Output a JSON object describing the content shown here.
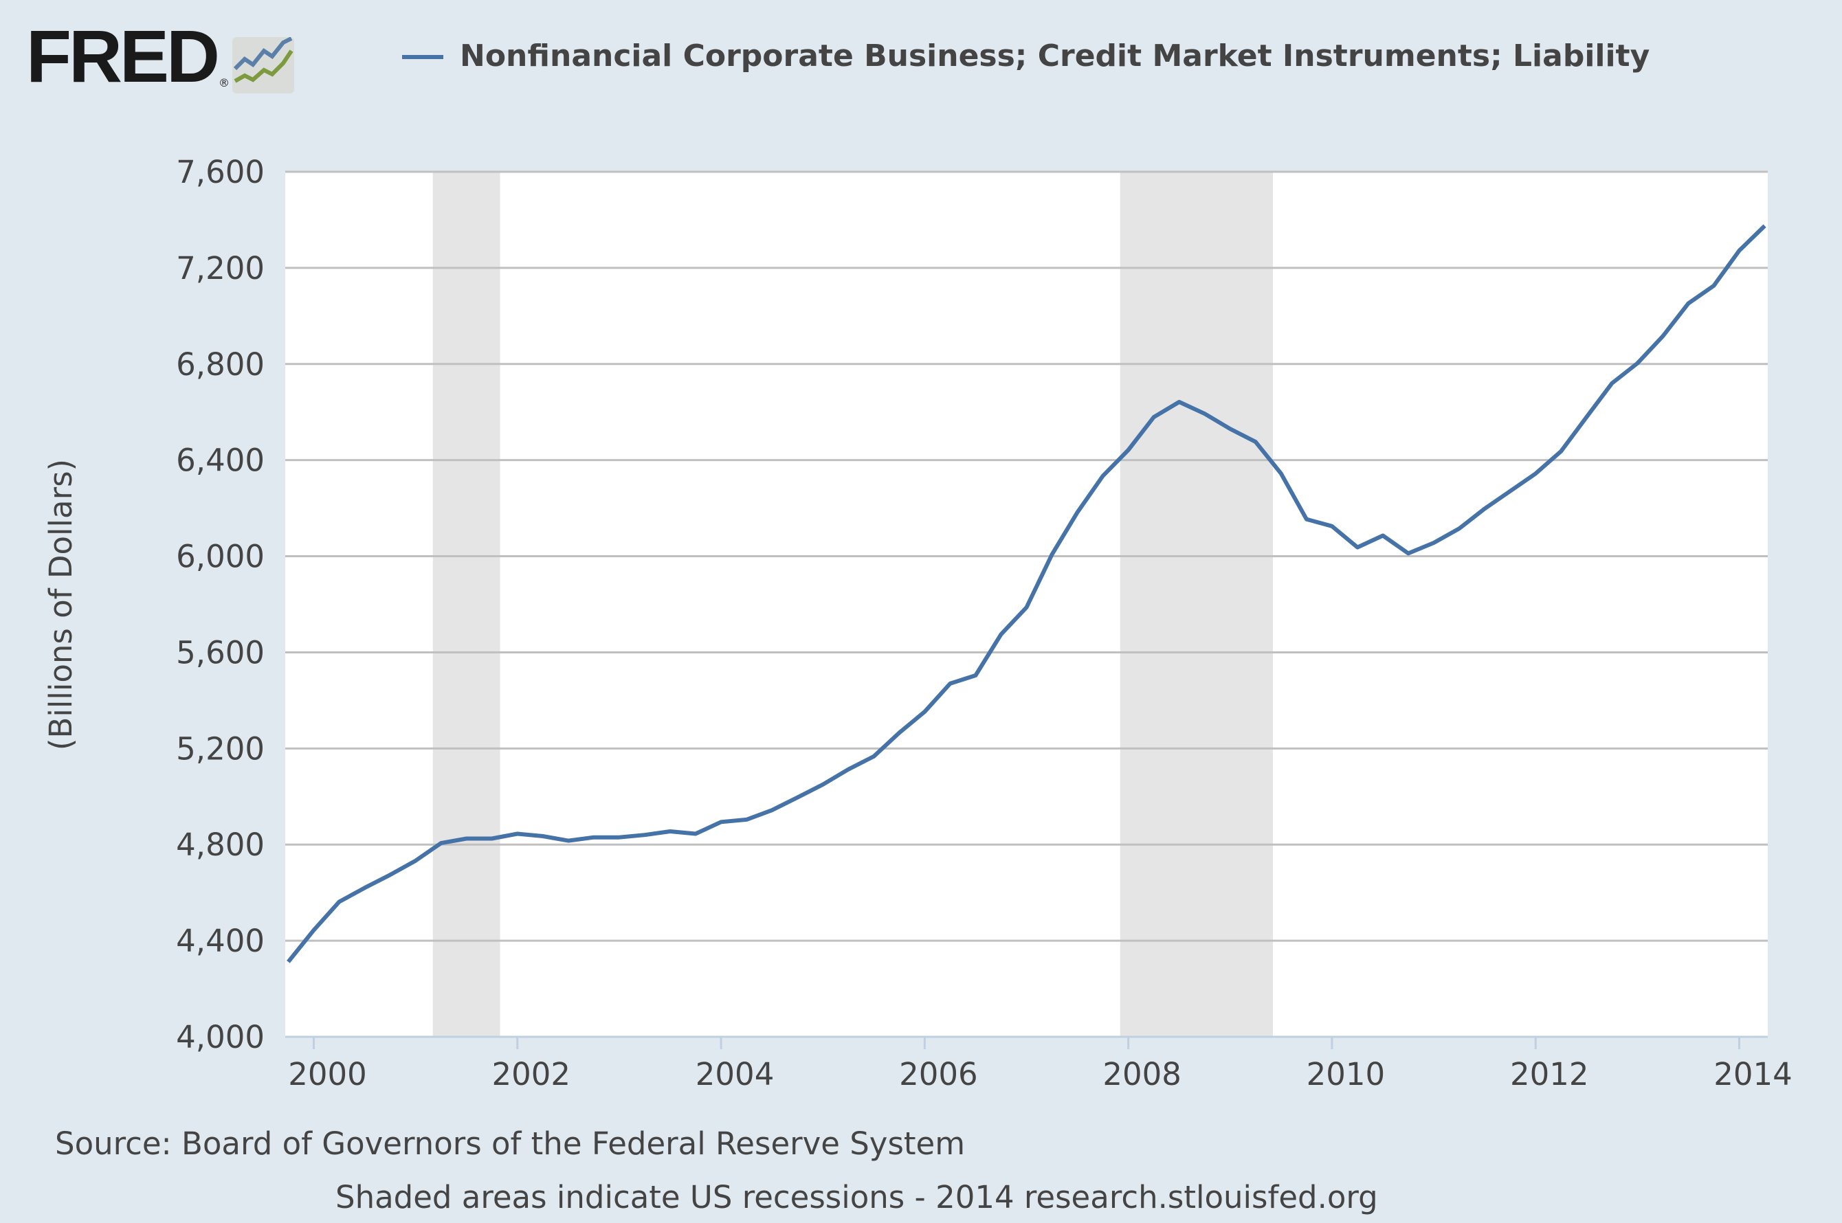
{
  "logo": {
    "text": "FRED",
    "mark": "®"
  },
  "colors": {
    "line": "#4572a7",
    "background": "#e1e9f0",
    "plot": "#ffffff",
    "recession": "#e5e5e5",
    "grid": "#c0c0c0"
  },
  "chart_data": {
    "type": "line",
    "title": "Nonfinancial Corporate Business; Credit Market Instruments; Liability",
    "xlabel": "",
    "ylabel": "(Billions of Dollars)",
    "xlim": [
      1999.72,
      2014.28
    ],
    "ylim": [
      4000,
      7600
    ],
    "yticks": [
      4000,
      4400,
      4800,
      5200,
      5600,
      6000,
      6400,
      6800,
      7200,
      7600
    ],
    "ytick_labels": [
      "4,000",
      "4,400",
      "4,800",
      "5,200",
      "5,600",
      "6,000",
      "6,400",
      "6,800",
      "7,200",
      "7,600"
    ],
    "xticks": [
      2000,
      2002,
      2004,
      2006,
      2008,
      2010,
      2012,
      2014
    ],
    "xtick_labels": [
      "2000",
      "2002",
      "2004",
      "2006",
      "2008",
      "2010",
      "2012",
      "2014"
    ],
    "grid": true,
    "legend_placement": "top",
    "recessions": [
      [
        2001.17,
        2001.83
      ],
      [
        2007.92,
        2009.42
      ]
    ],
    "series": [
      {
        "name": "Nonfinancial Corporate Business; Credit Market Instruments; Liability",
        "x_start": 1999.75,
        "x_step": 0.25,
        "values": [
          4312,
          4444,
          4562,
          4620,
          4674,
          4733,
          4806,
          4825,
          4825,
          4845,
          4835,
          4816,
          4830,
          4830,
          4840,
          4855,
          4845,
          4894,
          4904,
          4943,
          4996,
          5050,
          5113,
          5167,
          5265,
          5353,
          5470,
          5504,
          5675,
          5787,
          6007,
          6183,
          6334,
          6442,
          6579,
          6642,
          6593,
          6530,
          6476,
          6344,
          6154,
          6125,
          6037,
          6086,
          6012,
          6056,
          6115,
          6198,
          6271,
          6344,
          6437,
          6579,
          6720,
          6803,
          6916,
          7052,
          7126,
          7272,
          7375
        ]
      }
    ]
  },
  "footer": {
    "source": "Source: Board of Governors of the Federal Reserve System",
    "note": "Shaded areas indicate US recessions - 2014 research.stlouisfed.org"
  }
}
